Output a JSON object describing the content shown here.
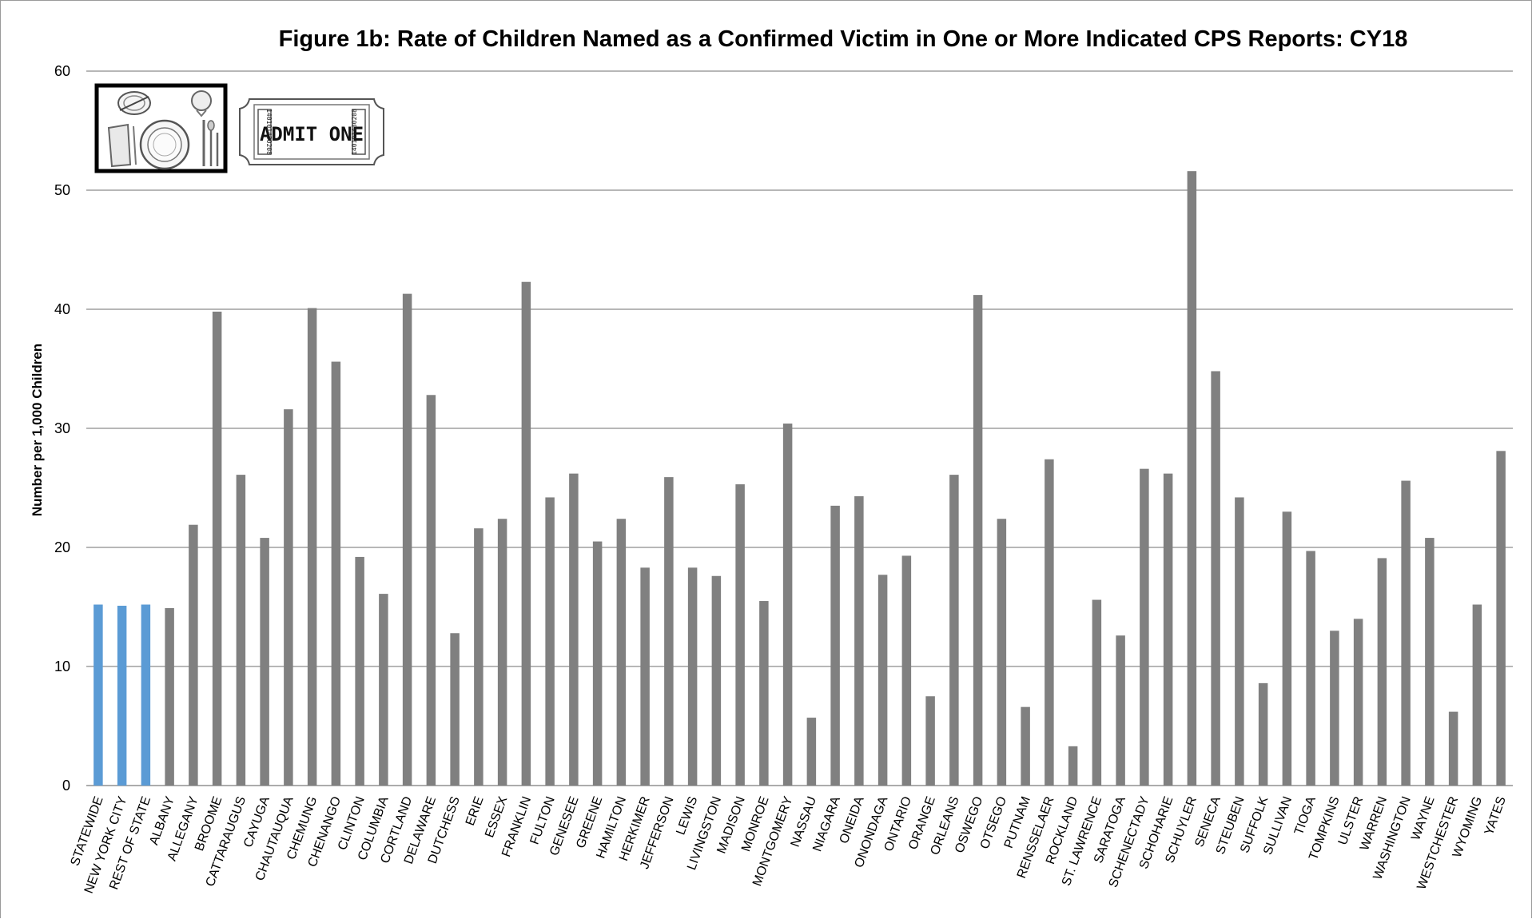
{
  "chart_data": {
    "type": "bar",
    "title": "Figure 1b: Rate of Children Named as a Confirmed Victim in One or More Indicated CPS Reports: CY18",
    "xlabel": "",
    "ylabel": "Number per 1,000 Children",
    "ylim": [
      0,
      60
    ],
    "yticks": [
      0,
      10,
      20,
      30,
      40,
      50,
      60
    ],
    "grid": true,
    "legend": "none",
    "colors": {
      "highlight": "#5b9bd5",
      "default": "#808080"
    },
    "highlight_categories": [
      "STATEWIDE",
      "NEW YORK CITY",
      "REST OF STATE"
    ],
    "categories": [
      "STATEWIDE",
      "NEW YORK CITY",
      "REST OF STATE",
      "ALBANY",
      "ALLEGANY",
      "BROOME",
      "CATTARAUGUS",
      "CAYUGA",
      "CHAUTAUQUA",
      "CHEMUNG",
      "CHENANGO",
      "CLINTON",
      "COLUMBIA",
      "CORTLAND",
      "DELAWARE",
      "DUTCHESS",
      "ERIE",
      "ESSEX",
      "FRANKLIN",
      "FULTON",
      "GENESEE",
      "GREENE",
      "HAMILTON",
      "HERKIMER",
      "JEFFERSON",
      "LEWIS",
      "LIVINGSTON",
      "MADISON",
      "MONROE",
      "MONTGOMERY",
      "NASSAU",
      "NIAGARA",
      "ONEIDA",
      "ONONDAGA",
      "ONTARIO",
      "ORANGE",
      "ORLEANS",
      "OSWEGO",
      "OTSEGO",
      "PUTNAM",
      "RENSSELAER",
      "ROCKLAND",
      "ST. LAWRENCE",
      "SARATOGA",
      "SCHENECTADY",
      "SCHOHARIE",
      "SCHUYLER",
      "SENECA",
      "STEUBEN",
      "SUFFOLK",
      "SULLIVAN",
      "TIOGA",
      "TOMPKINS",
      "ULSTER",
      "WARREN",
      "WASHINGTON",
      "WAYNE",
      "WESTCHESTER",
      "WYOMING",
      "YATES"
    ],
    "values": [
      15.2,
      15.1,
      15.2,
      14.9,
      21.9,
      39.8,
      26.1,
      20.8,
      31.6,
      40.1,
      35.6,
      19.2,
      16.1,
      41.3,
      32.8,
      12.8,
      21.6,
      22.4,
      42.3,
      24.2,
      26.2,
      20.5,
      22.4,
      18.3,
      25.9,
      18.3,
      17.6,
      25.3,
      15.5,
      30.4,
      5.7,
      23.5,
      24.3,
      17.7,
      19.3,
      7.5,
      26.1,
      41.2,
      22.4,
      6.6,
      27.4,
      3.3,
      15.6,
      12.6,
      26.6,
      26.2,
      51.6,
      34.8,
      24.2,
      8.6,
      23.0,
      19.7,
      13.0,
      14.0,
      19.1,
      25.6,
      20.8,
      6.2,
      15.2,
      28.1
    ]
  },
  "images": {
    "place_setting": {
      "icon": "place-setting-icon"
    },
    "ticket": {
      "icon": "ticket-icon",
      "text": "ADMIT ONE",
      "serial": "140101430208"
    }
  }
}
